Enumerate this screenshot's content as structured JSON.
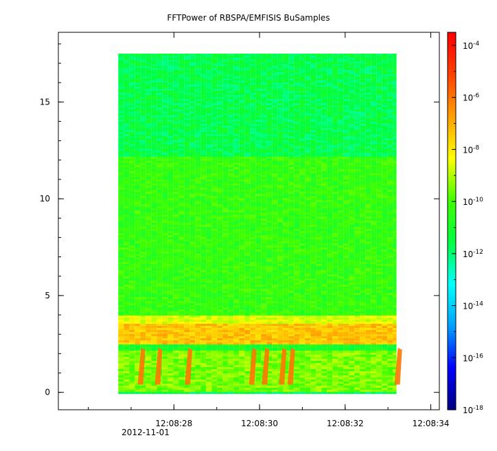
{
  "chart_data": {
    "type": "heatmap",
    "title": "FFTPower of RBSPA/EMFISIS  BuSamples",
    "xlabel": "",
    "ylabel": "",
    "x_ticks": [
      "12:08:28",
      "12:08:30",
      "12:08:32",
      "12:08:34"
    ],
    "x_tick_values_s": [
      28,
      30,
      32,
      34
    ],
    "x_date_label": "2012-11-01",
    "x_range_s": [
      25.3,
      34.2
    ],
    "data_x_range_s": [
      26.7,
      33.2
    ],
    "y_ticks": [
      "0",
      "5",
      "10",
      "15"
    ],
    "y_tick_values": [
      0,
      5,
      10,
      15
    ],
    "ylim": [
      -0.9,
      18.6
    ],
    "data_y_range": [
      0,
      17.5
    ],
    "colorbar": {
      "scale": "log",
      "min_exp": -18,
      "max_exp": -3.5,
      "tick_exponents": [
        -18,
        -16,
        -14,
        -12,
        -10,
        -8,
        -6,
        -4
      ],
      "tick_labels": [
        "10-18",
        "10-16",
        "10-14",
        "10-12",
        "10-10",
        "10-8",
        "10-6",
        "10-4"
      ],
      "colors": [
        "#000080",
        "#0000ff",
        "#00a0ff",
        "#00ffff",
        "#00ff40",
        "#40ff00",
        "#ffff00",
        "#ffa000",
        "#ff4000",
        "#ff0000"
      ]
    },
    "bands": [
      {
        "y_from": 0.0,
        "y_to": 2.2,
        "log_power": -9.5
      },
      {
        "y_from": 2.2,
        "y_to": 2.5,
        "log_power": -11.0
      },
      {
        "y_from": 2.5,
        "y_to": 3.5,
        "log_power": -7.3
      },
      {
        "y_from": 3.5,
        "y_to": 4.0,
        "log_power": -8.5
      },
      {
        "y_from": 4.0,
        "y_to": 12.2,
        "log_power": -10.3
      },
      {
        "y_from": 12.2,
        "y_to": 17.5,
        "log_power": -11.6
      }
    ],
    "bursts_s": [
      27.2,
      27.6,
      28.3,
      29.8,
      30.1,
      30.5,
      30.7,
      33.2
    ]
  }
}
